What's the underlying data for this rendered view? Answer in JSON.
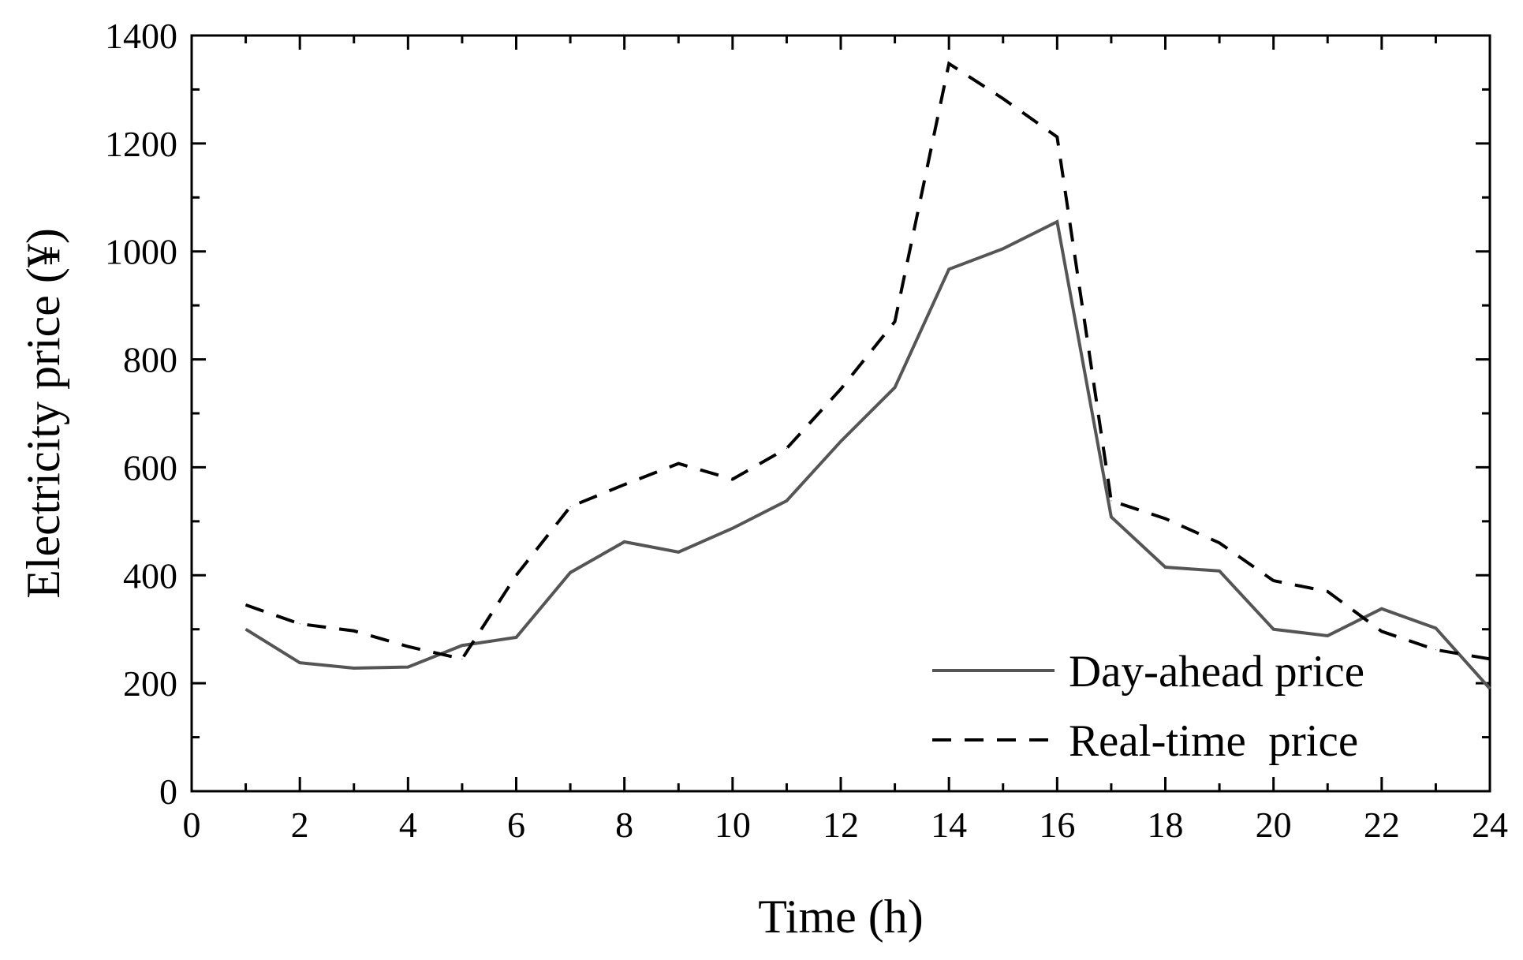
{
  "chart_data": {
    "type": "line",
    "title": "",
    "xlabel": "Time (h)",
    "ylabel": "Electricity price (¥)",
    "xlim": [
      0,
      24
    ],
    "ylim": [
      0,
      1400
    ],
    "xticks": [
      0,
      2,
      4,
      6,
      8,
      10,
      12,
      14,
      16,
      18,
      20,
      22,
      24
    ],
    "yticks": [
      0,
      200,
      400,
      600,
      800,
      1000,
      1200,
      1400
    ],
    "x": [
      1,
      2,
      3,
      4,
      5,
      6,
      7,
      8,
      9,
      10,
      11,
      12,
      13,
      14,
      15,
      16,
      17,
      18,
      19,
      20,
      21,
      22,
      23,
      24
    ],
    "grid": false,
    "legend_position": "bottom-right",
    "series": [
      {
        "name": "Day-ahead price",
        "style": "solid",
        "color": "#555555",
        "values": [
          300,
          238,
          228,
          230,
          270,
          285,
          405,
          462,
          443,
          487,
          538,
          648,
          748,
          967,
          1005,
          1055,
          508,
          415,
          408,
          300,
          288,
          338,
          302,
          190
        ]
      },
      {
        "name": "Real-time  price",
        "style": "dashed",
        "color": "#000000",
        "values": [
          345,
          310,
          297,
          268,
          245,
          400,
          527,
          568,
          607,
          578,
          635,
          745,
          870,
          1348,
          1283,
          1212,
          538,
          505,
          460,
          390,
          370,
          296,
          262,
          245
        ]
      }
    ]
  }
}
